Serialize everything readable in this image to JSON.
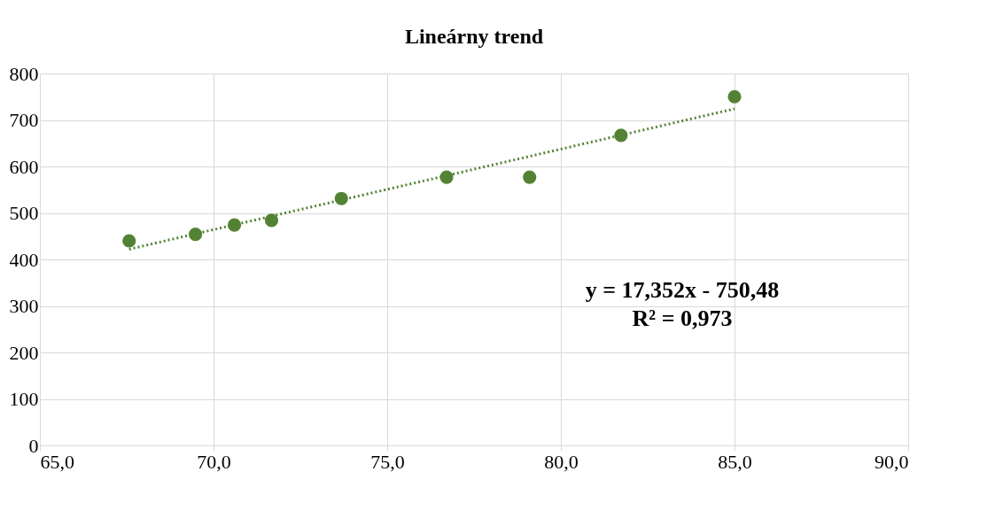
{
  "chart_data": {
    "type": "scatter",
    "title": "Lineárny trend",
    "marker": "circle",
    "grid": true,
    "xlim": [
      65,
      90
    ],
    "xticks": [
      {
        "value": 65,
        "label": "65,0"
      },
      {
        "value": 70,
        "label": "70,0"
      },
      {
        "value": 75,
        "label": "75,0"
      },
      {
        "value": 80,
        "label": "80,0"
      },
      {
        "value": 85,
        "label": "85,0"
      },
      {
        "value": 90,
        "label": "90,0"
      }
    ],
    "ylim": [
      0,
      800
    ],
    "yticks": [
      0,
      100,
      200,
      300,
      400,
      500,
      600,
      700,
      800
    ],
    "series": [
      {
        "color": "#548235",
        "x": [
          67.57,
          69.48,
          70.6,
          71.67,
          73.68,
          76.71,
          79.1,
          81.73,
          85.0
        ],
        "values": [
          440,
          454,
          474,
          484,
          531,
          577,
          577,
          667,
          750
        ]
      },
      {
        "type": "line",
        "color": "#548235",
        "line_style": "dotted",
        "marker": "none",
        "x": [
          67.57,
          85.0
        ],
        "values": [
          422,
          724
        ]
      }
    ],
    "annotations": [
      "y = 17,352x - 750,48",
      "R² = 0,973"
    ]
  }
}
